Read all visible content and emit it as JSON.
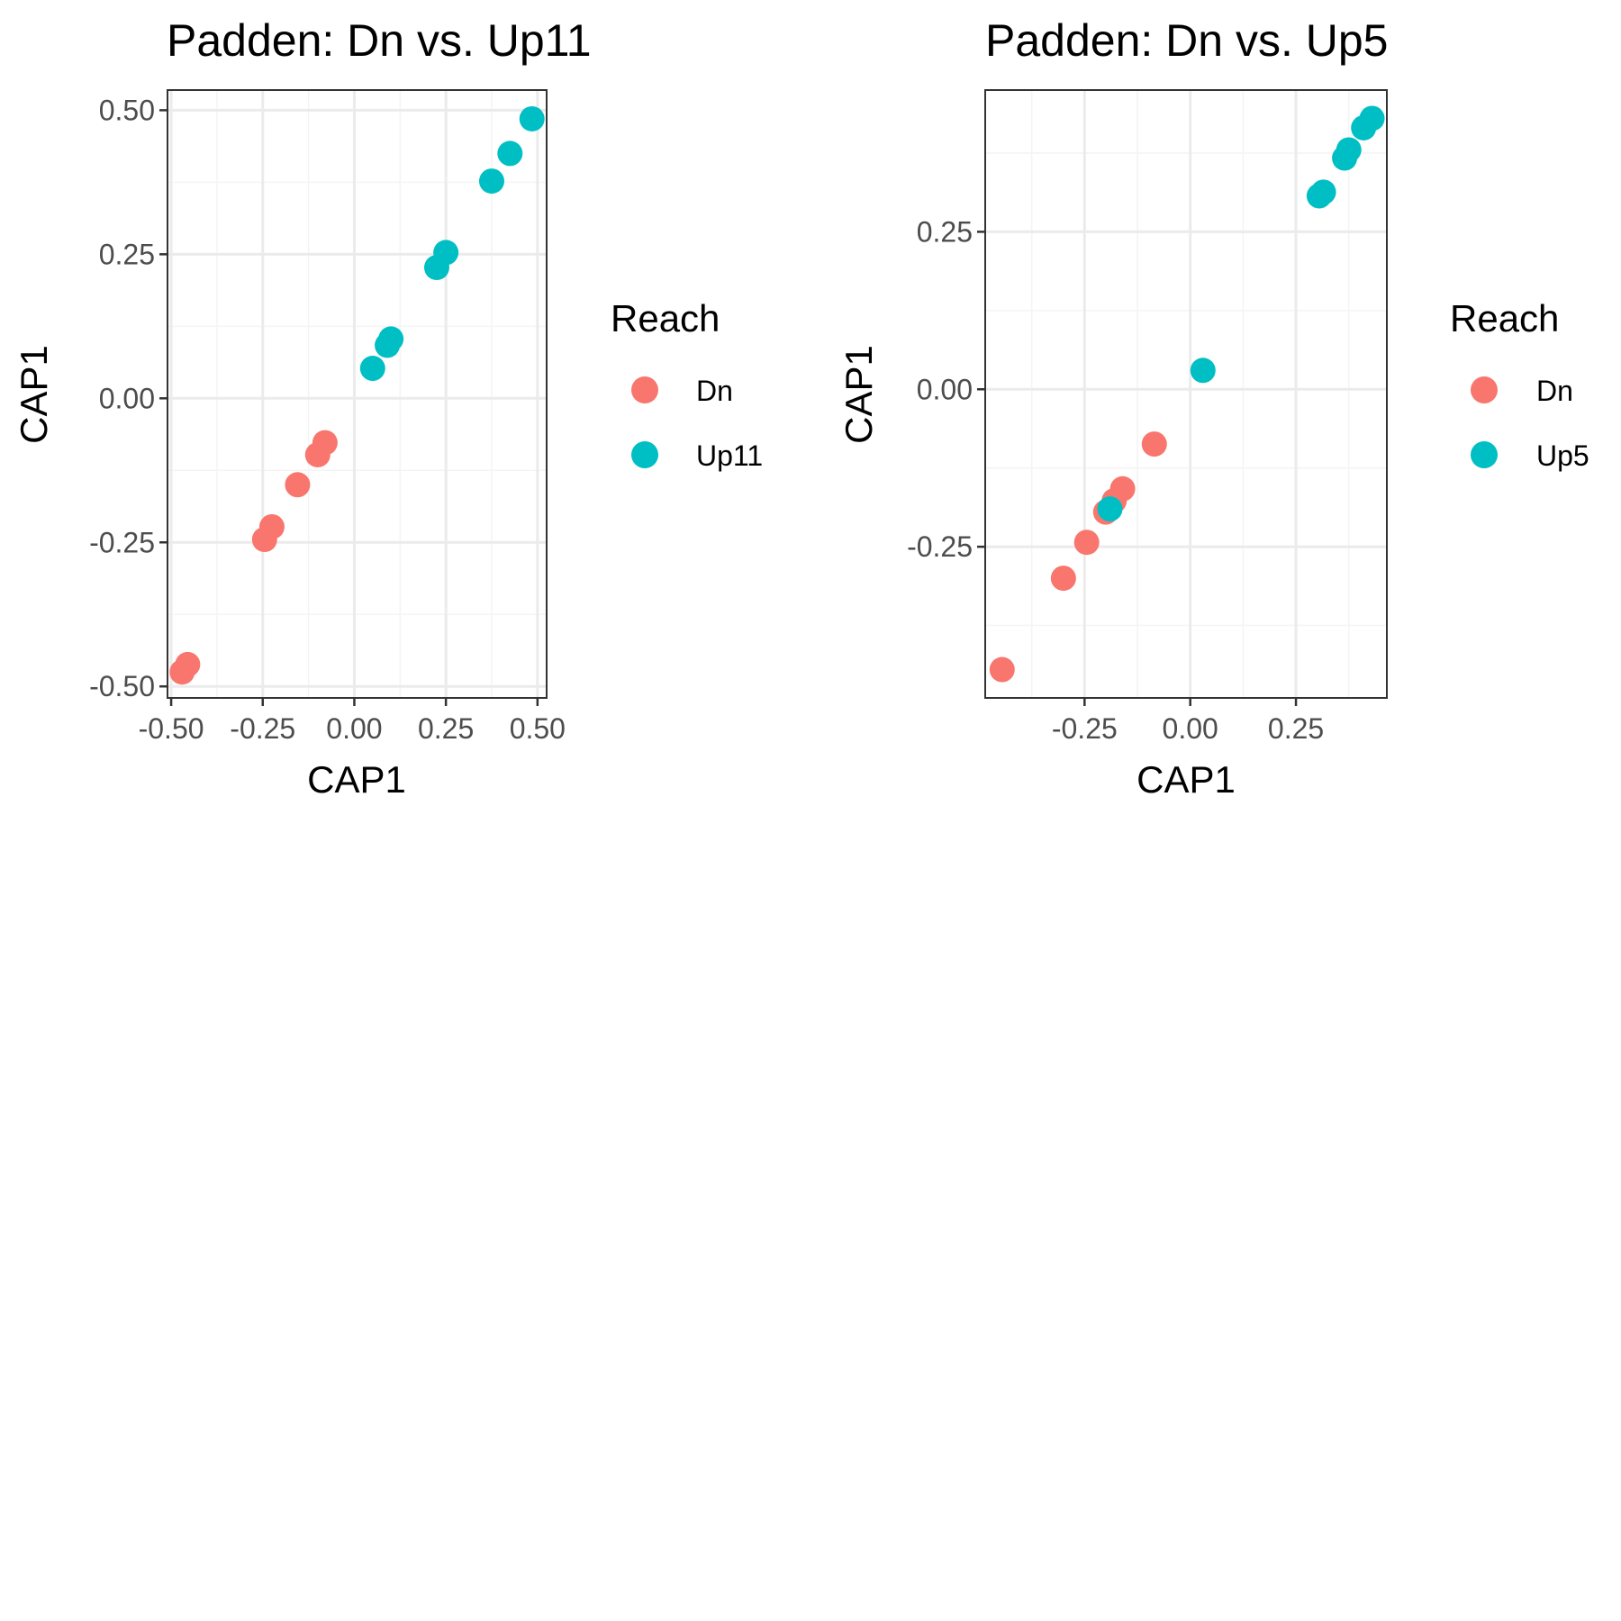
{
  "colors": {
    "Dn": "#F8766D",
    "Up": "#00BFC4",
    "grid_major": "#ebebeb",
    "grid_minor": "#f4f4f4",
    "panel_border": "#333333"
  },
  "chart_data": [
    {
      "type": "scatter",
      "title": "Padden: Dn vs. Up11",
      "xlabel": "CAP1",
      "ylabel": "CAP1",
      "xlim": [
        -0.51,
        0.525
      ],
      "ylim": [
        -0.52,
        0.535
      ],
      "xticks": [
        -0.5,
        -0.25,
        0.0,
        0.25,
        0.5
      ],
      "xtick_labels": [
        "-0.50",
        "-0.25",
        "0.00",
        "0.25",
        "0.50"
      ],
      "yticks": [
        -0.5,
        -0.25,
        0.0,
        0.25,
        0.5
      ],
      "ytick_labels": [
        "-0.50",
        "-0.25",
        "0.00",
        "0.25",
        "0.50"
      ],
      "grid": true,
      "legend": {
        "title": "Reach",
        "placement": "right",
        "entries": [
          "Dn",
          "Up11"
        ]
      },
      "series": [
        {
          "name": "Dn",
          "points": [
            [
              -0.47,
              -0.475
            ],
            [
              -0.455,
              -0.462
            ],
            [
              -0.245,
              -0.245
            ],
            [
              -0.225,
              -0.223
            ],
            [
              -0.155,
              -0.15
            ],
            [
              -0.1,
              -0.098
            ],
            [
              -0.08,
              -0.077
            ]
          ]
        },
        {
          "name": "Up11",
          "points": [
            [
              0.05,
              0.052
            ],
            [
              0.09,
              0.092
            ],
            [
              0.1,
              0.103
            ],
            [
              0.225,
              0.227
            ],
            [
              0.25,
              0.253
            ],
            [
              0.375,
              0.377
            ],
            [
              0.425,
              0.425
            ],
            [
              0.485,
              0.485
            ]
          ]
        }
      ]
    },
    {
      "type": "scatter",
      "title": "Padden: Dn vs. Up5",
      "xlabel": "CAP1",
      "ylabel": "CAP1",
      "xlim": [
        -0.485,
        0.465
      ],
      "ylim": [
        -0.49,
        0.475
      ],
      "xticks": [
        -0.25,
        0.0,
        0.25
      ],
      "xtick_labels": [
        "-0.25",
        "0.00",
        "0.25"
      ],
      "yticks": [
        -0.25,
        0.0,
        0.25
      ],
      "ytick_labels": [
        "-0.25",
        "0.00",
        "0.25"
      ],
      "grid": true,
      "legend": {
        "title": "Reach",
        "placement": "right",
        "entries": [
          "Dn",
          "Up5"
        ]
      },
      "series": [
        {
          "name": "Dn",
          "points": [
            [
              -0.445,
              -0.445
            ],
            [
              -0.3,
              -0.3
            ],
            [
              -0.245,
              -0.243
            ],
            [
              -0.2,
              -0.195
            ],
            [
              -0.18,
              -0.177
            ],
            [
              -0.16,
              -0.158
            ],
            [
              -0.085,
              -0.087
            ]
          ]
        },
        {
          "name": "Up5",
          "points": [
            [
              -0.19,
              -0.19
            ],
            [
              0.03,
              0.03
            ],
            [
              0.305,
              0.307
            ],
            [
              0.315,
              0.313
            ],
            [
              0.365,
              0.367
            ],
            [
              0.375,
              0.38
            ],
            [
              0.41,
              0.415
            ],
            [
              0.43,
              0.43
            ]
          ]
        }
      ]
    }
  ]
}
